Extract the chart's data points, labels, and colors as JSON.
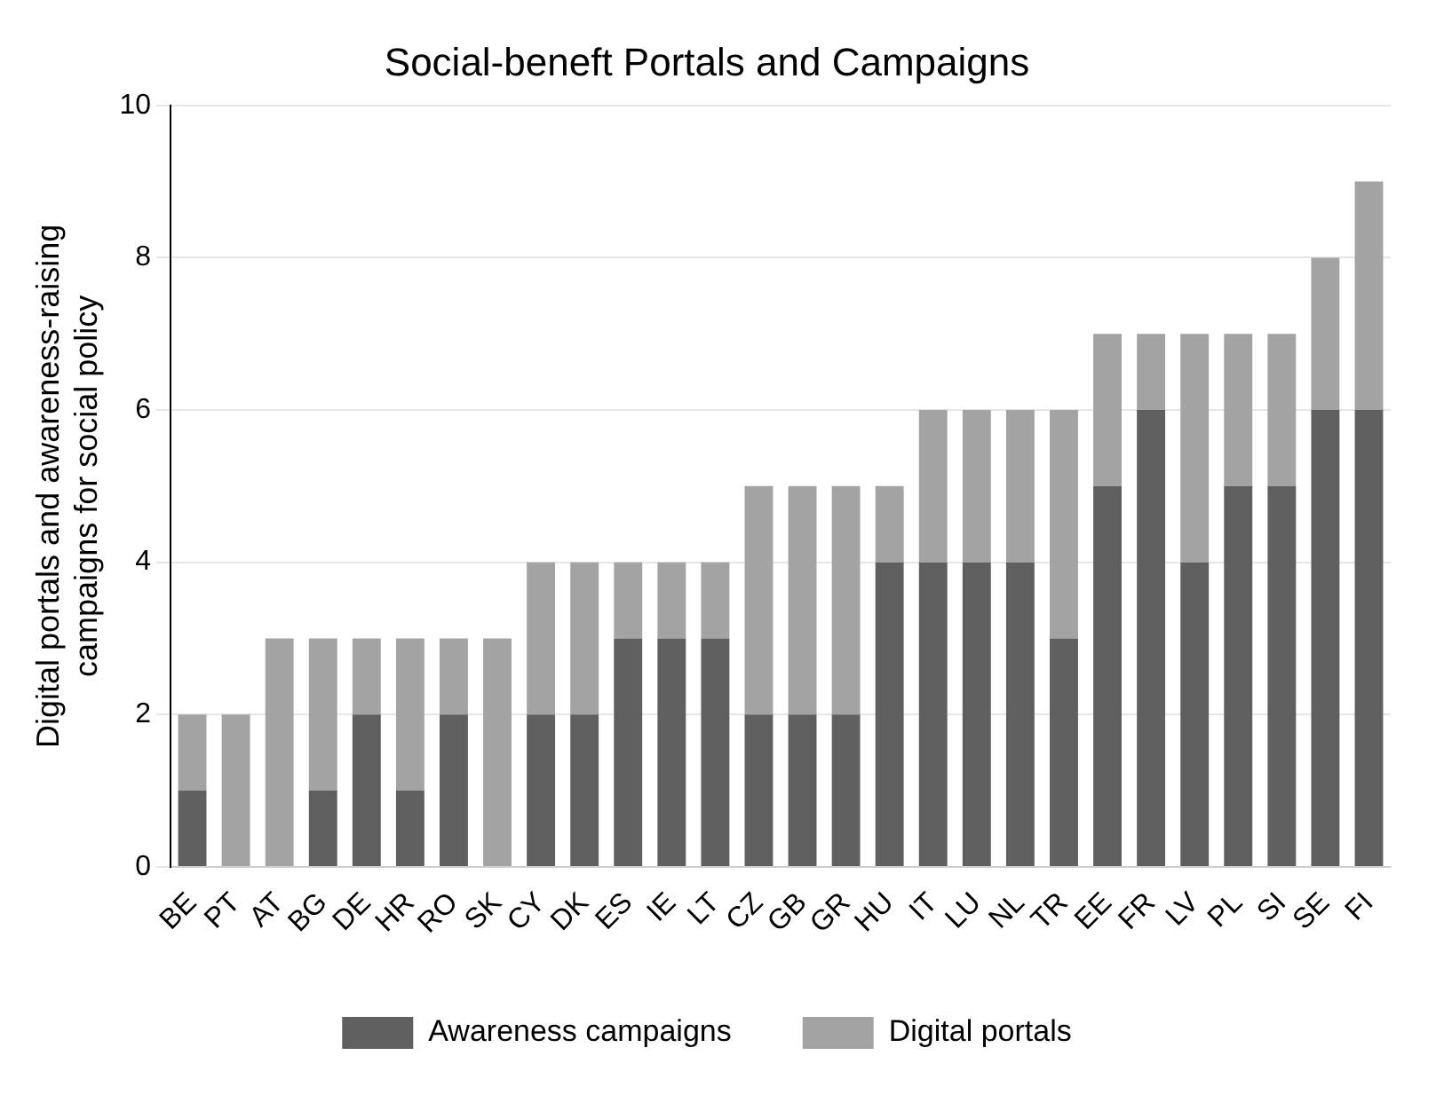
{
  "chart_data": {
    "type": "bar",
    "title": "Social-beneft Portals and Campaigns",
    "ylabel": "Digital portals and awareness-raising campaigns for social policy",
    "categories": [
      "BE",
      "PT",
      "AT",
      "BG",
      "DE",
      "HR",
      "RO",
      "SK",
      "CY",
      "DK",
      "ES",
      "IE",
      "LT",
      "CZ",
      "GB",
      "GR",
      "HU",
      "IT",
      "LU",
      "NL",
      "TR",
      "EE",
      "FR",
      "LV",
      "PL",
      "SI",
      "SE",
      "FI"
    ],
    "stacked": true,
    "series": [
      {
        "name": "Awareness campaigns",
        "color": "#5f5f5f",
        "values": [
          1,
          0,
          0,
          1,
          2,
          1,
          2,
          0,
          2,
          2,
          3,
          3,
          3,
          2,
          2,
          2,
          4,
          4,
          4,
          4,
          3,
          5,
          6,
          4,
          5,
          5,
          6,
          6
        ]
      },
      {
        "name": "Digital portals",
        "color": "#a3a3a3",
        "values": [
          1,
          2,
          3,
          2,
          1,
          2,
          1,
          3,
          2,
          2,
          1,
          1,
          1,
          3,
          3,
          3,
          1,
          2,
          2,
          2,
          3,
          2,
          1,
          3,
          2,
          2,
          2,
          3
        ]
      }
    ],
    "ylim": [
      0,
      10
    ],
    "yticks": [
      0,
      2,
      4,
      6,
      8,
      10
    ],
    "grid": "y",
    "legend": "bottom"
  }
}
